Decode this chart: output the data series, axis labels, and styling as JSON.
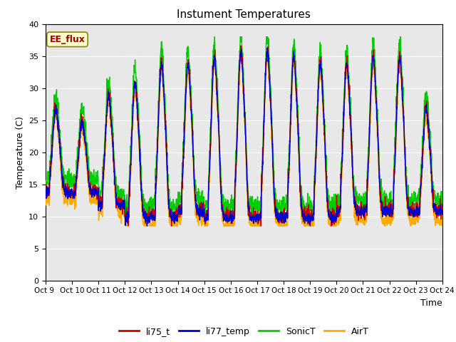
{
  "title": "Instument Temperatures",
  "xlabel": "Time",
  "ylabel": "Temperature (C)",
  "ylim": [
    0,
    40
  ],
  "yticks": [
    0,
    5,
    10,
    15,
    20,
    25,
    30,
    35,
    40
  ],
  "plot_bg": "#e8e8e8",
  "grid_color": "white",
  "colors": {
    "li75_t": "#cc0000",
    "li77_temp": "#0000cc",
    "SonicT": "#00cc00",
    "AirT": "#ffaa00"
  },
  "annotation_text": "EE_flux",
  "annotation_color": "#990000",
  "annotation_bg": "#ffffcc",
  "xtick_labels": [
    "Oct 9 ",
    "Oct 10",
    "Oct 11",
    "Oct 12",
    "Oct 13",
    "Oct 14",
    "Oct 15",
    "Oct 16",
    "Oct 17",
    "Oct 18",
    "Oct 19",
    "Oct 20",
    "Oct 21",
    "Oct 22",
    "Oct 23",
    "Oct 24"
  ],
  "n_days": 15,
  "pts_per_day": 144
}
